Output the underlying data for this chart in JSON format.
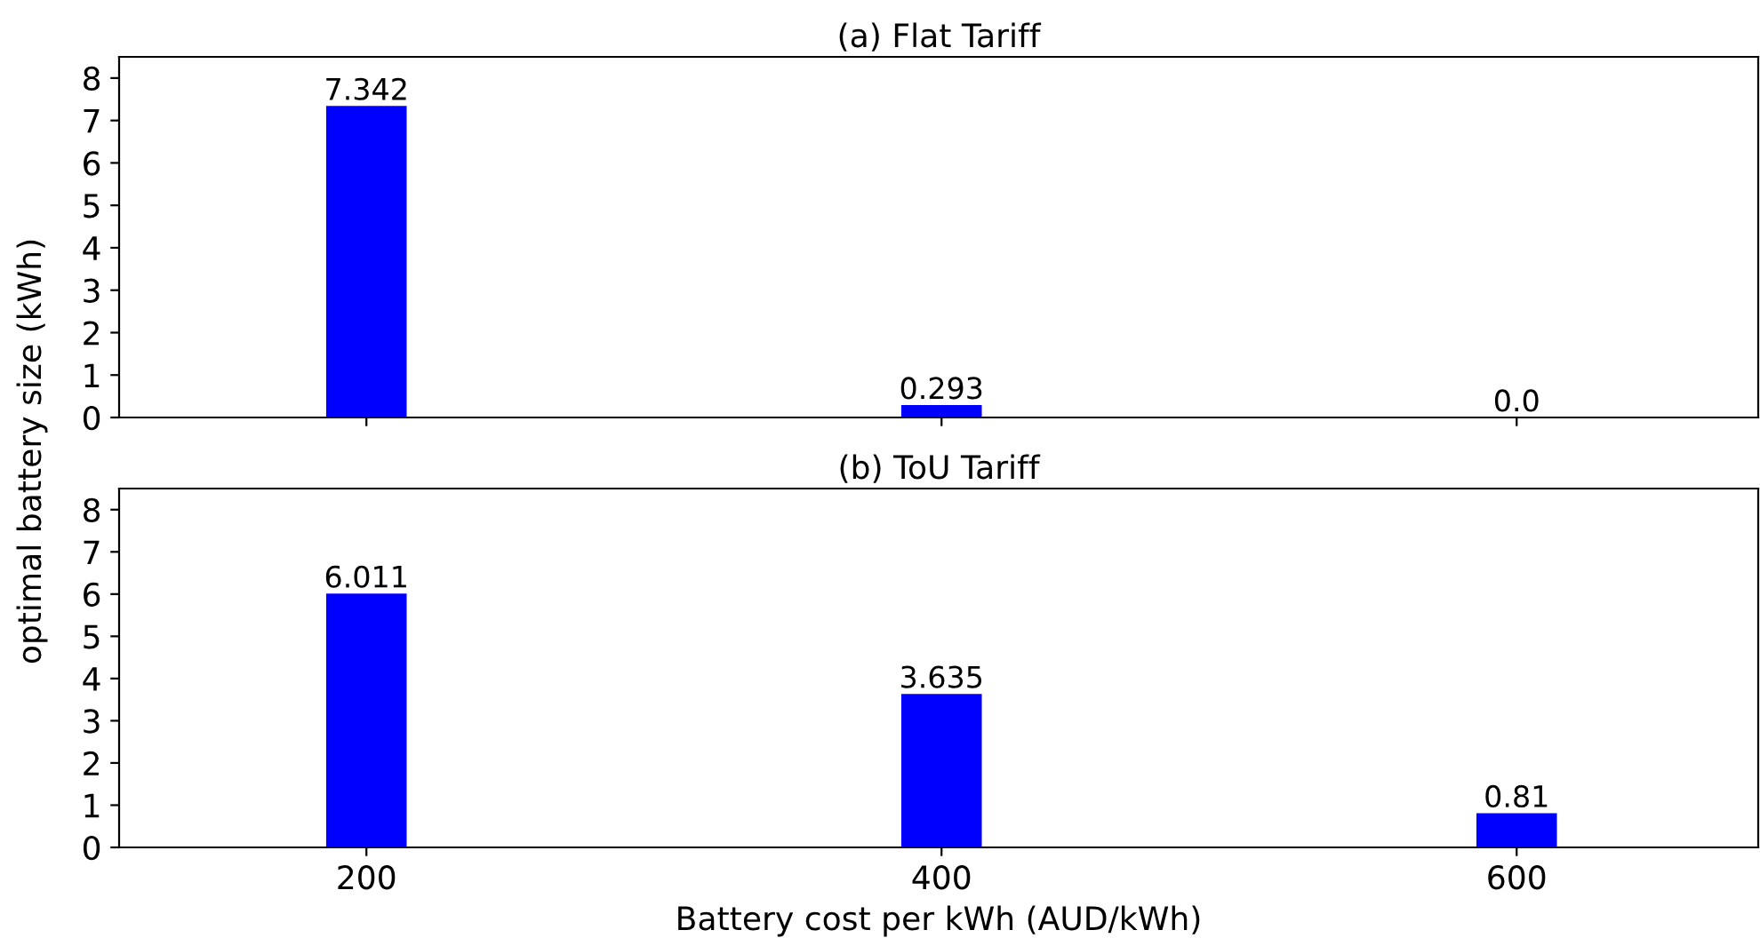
{
  "chart_data": [
    {
      "type": "bar",
      "title": "(a) Flat Tariff",
      "ylabel": "optimal battery size (kWh)",
      "categories": [
        "200",
        "400",
        "600"
      ],
      "values": [
        7.342,
        0.293,
        0.0
      ],
      "color": "#0000ff",
      "value_labels": [
        "7.342",
        "0.293",
        "0.0"
      ],
      "ylim": [
        0,
        8.5
      ],
      "yticks": [
        0,
        1,
        2,
        3,
        4,
        5,
        6,
        7,
        8
      ],
      "tick_labels": "y",
      "grid": false,
      "legend": false
    },
    {
      "type": "bar",
      "title": "(b) ToU Tariff",
      "xlabel": "Battery cost per kWh (AUD/kWh)",
      "categories": [
        "200",
        "400",
        "600"
      ],
      "values": [
        6.011,
        3.635,
        0.81
      ],
      "color": "#0000ff",
      "value_labels": [
        "6.011",
        "3.635",
        "0.81"
      ],
      "ylim": [
        0,
        8.5
      ],
      "yticks": [
        0,
        1,
        2,
        3,
        4,
        5,
        6,
        7,
        8
      ],
      "grid": false,
      "legend": false
    }
  ]
}
